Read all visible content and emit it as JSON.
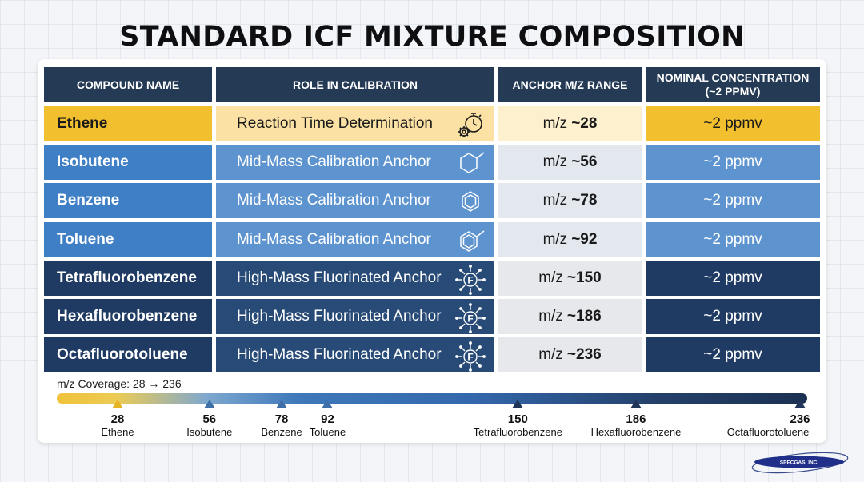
{
  "title": "STANDARD ICF MIXTURE COMPOSITION",
  "headers": [
    "COMPOUND NAME",
    "ROLE IN CALIBRATION",
    "ANCHOR M/Z RANGE",
    "NOMINAL CONCENTRATION\n(~2 PPMV)"
  ],
  "rows": [
    {
      "compound": "Ethene",
      "role": "Reaction Time Determination",
      "icon": "stopwatch-gear-icon",
      "mz_prefix": "m/z",
      "mz_value": "~28",
      "concentration": "~2 ppmv",
      "group": "reaction"
    },
    {
      "compound": "Isobutene",
      "role": "Mid-Mass Calibration Anchor",
      "icon": "alkene-structure-icon",
      "mz_prefix": "m/z",
      "mz_value": "~56",
      "concentration": "~2 ppmv",
      "group": "mid"
    },
    {
      "compound": "Benzene",
      "role": "Mid-Mass Calibration Anchor",
      "icon": "benzene-ring-icon",
      "mz_prefix": "m/z",
      "mz_value": "~78",
      "concentration": "~2 ppmv",
      "group": "mid"
    },
    {
      "compound": "Toluene",
      "role": "Mid-Mass Calibration Anchor",
      "icon": "toluene-ring-icon",
      "mz_prefix": "m/z",
      "mz_value": "~92",
      "concentration": "~2 ppmv",
      "group": "mid"
    },
    {
      "compound": "Tetrafluorobenzene",
      "role": "High-Mass Fluorinated Anchor",
      "icon": "fluorine-burst-icon",
      "mz_prefix": "m/z",
      "mz_value": "~150",
      "concentration": "~2 ppmv",
      "group": "high"
    },
    {
      "compound": "Hexafluorobenzene",
      "role": "High-Mass Fluorinated Anchor",
      "icon": "fluorine-burst-icon",
      "mz_prefix": "m/z",
      "mz_value": "~186",
      "concentration": "~2 ppmv",
      "group": "high"
    },
    {
      "compound": "Octafluorotoluene",
      "role": "High-Mass Fluorinated Anchor",
      "icon": "fluorine-burst-icon",
      "mz_prefix": "m/z",
      "mz_value": "~236",
      "concentration": "~2 ppmv",
      "group": "high"
    }
  ],
  "colors": {
    "header": "#243a55",
    "reaction": "#f2c02e",
    "reaction_light": "#fbe2a4",
    "reaction_mz": "#fdf0cf",
    "mid": "#3f7fc6",
    "mid_light": "#5d93cf",
    "mid_mz": "#e3e8ee",
    "high": "#1f3b63",
    "high_light": "#284a77",
    "high_mz": "#e6e8ec"
  },
  "coverage": {
    "label": "m/z Coverage: 28 → 236",
    "range": [
      28,
      236
    ],
    "markers": [
      {
        "value": 28,
        "label": "28",
        "name": "Ethene",
        "group": "reaction"
      },
      {
        "value": 56,
        "label": "56",
        "name": "Isobutene",
        "group": "mid"
      },
      {
        "value": 78,
        "label": "78",
        "name": "Benzene",
        "group": "mid"
      },
      {
        "value": 92,
        "label": "92",
        "name": "Toluene",
        "group": "mid"
      },
      {
        "value": 150,
        "label": "150",
        "name": "Tetrafluorobenzene",
        "group": "high"
      },
      {
        "value": 186,
        "label": "186",
        "name": "Hexafluorobenzene",
        "group": "high"
      },
      {
        "value": 236,
        "label": "236",
        "name": "Octafluorotoluene",
        "group": "high"
      }
    ]
  },
  "chart_data": {
    "type": "table",
    "title": "STANDARD ICF MIXTURE COMPOSITION",
    "columns": [
      "COMPOUND NAME",
      "ROLE IN CALIBRATION",
      "ANCHOR M/Z RANGE",
      "NOMINAL CONCENTRATION (~2 PPMV)"
    ],
    "rows": [
      [
        "Ethene",
        "Reaction Time Determination",
        "m/z ~28",
        "~2 ppmv"
      ],
      [
        "Isobutene",
        "Mid-Mass Calibration Anchor",
        "m/z ~56",
        "~2 ppmv"
      ],
      [
        "Benzene",
        "Mid-Mass Calibration Anchor",
        "m/z ~78",
        "~2 ppmv"
      ],
      [
        "Toluene",
        "Mid-Mass Calibration Anchor",
        "m/z ~92",
        "~2 ppmv"
      ],
      [
        "Tetrafluorobenzene",
        "High-Mass Fluorinated Anchor",
        "m/z ~150",
        "~2 ppmv"
      ],
      [
        "Hexafluorobenzene",
        "High-Mass Fluorinated Anchor",
        "m/z ~186",
        "~2 ppmv"
      ],
      [
        "Octafluorotoluene",
        "High-Mass Fluorinated Anchor",
        "m/z ~236",
        "~2 ppmv"
      ]
    ],
    "coverage_axis": {
      "min": 28,
      "max": 236,
      "points": [
        28,
        56,
        78,
        92,
        150,
        186,
        236
      ]
    }
  },
  "logo": {
    "text": "SPECGAS, INC."
  }
}
